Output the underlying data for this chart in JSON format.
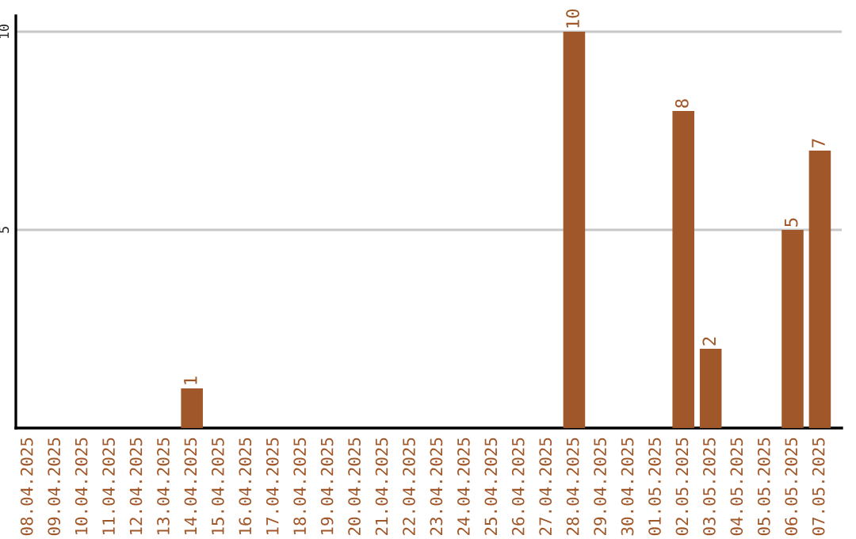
{
  "chart_data": {
    "type": "bar",
    "categories": [
      "08.04.2025",
      "09.04.2025",
      "10.04.2025",
      "11.04.2025",
      "12.04.2025",
      "13.04.2025",
      "14.04.2025",
      "15.04.2025",
      "16.04.2025",
      "17.04.2025",
      "18.04.2025",
      "19.04.2025",
      "20.04.2025",
      "21.04.2025",
      "22.04.2025",
      "23.04.2025",
      "24.04.2025",
      "25.04.2025",
      "26.04.2025",
      "27.04.2025",
      "28.04.2025",
      "29.04.2025",
      "30.04.2025",
      "01.05.2025",
      "02.05.2025",
      "03.05.2025",
      "04.05.2025",
      "05.05.2025",
      "06.05.2025",
      "07.05.2025"
    ],
    "values": [
      0,
      0,
      0,
      0,
      0,
      0,
      1,
      0,
      0,
      0,
      0,
      0,
      0,
      0,
      0,
      0,
      0,
      0,
      0,
      0,
      10,
      0,
      0,
      0,
      8,
      2,
      0,
      0,
      5,
      7
    ],
    "value_labels": [
      null,
      null,
      null,
      null,
      null,
      null,
      "1",
      null,
      null,
      null,
      null,
      null,
      null,
      null,
      null,
      null,
      null,
      null,
      null,
      null,
      "10",
      null,
      null,
      null,
      "8",
      "2",
      null,
      null,
      "5",
      "7"
    ],
    "color": "#a0582a",
    "ylim": [
      0,
      10.4
    ],
    "yticks": [
      5,
      10
    ],
    "grid": "y"
  }
}
